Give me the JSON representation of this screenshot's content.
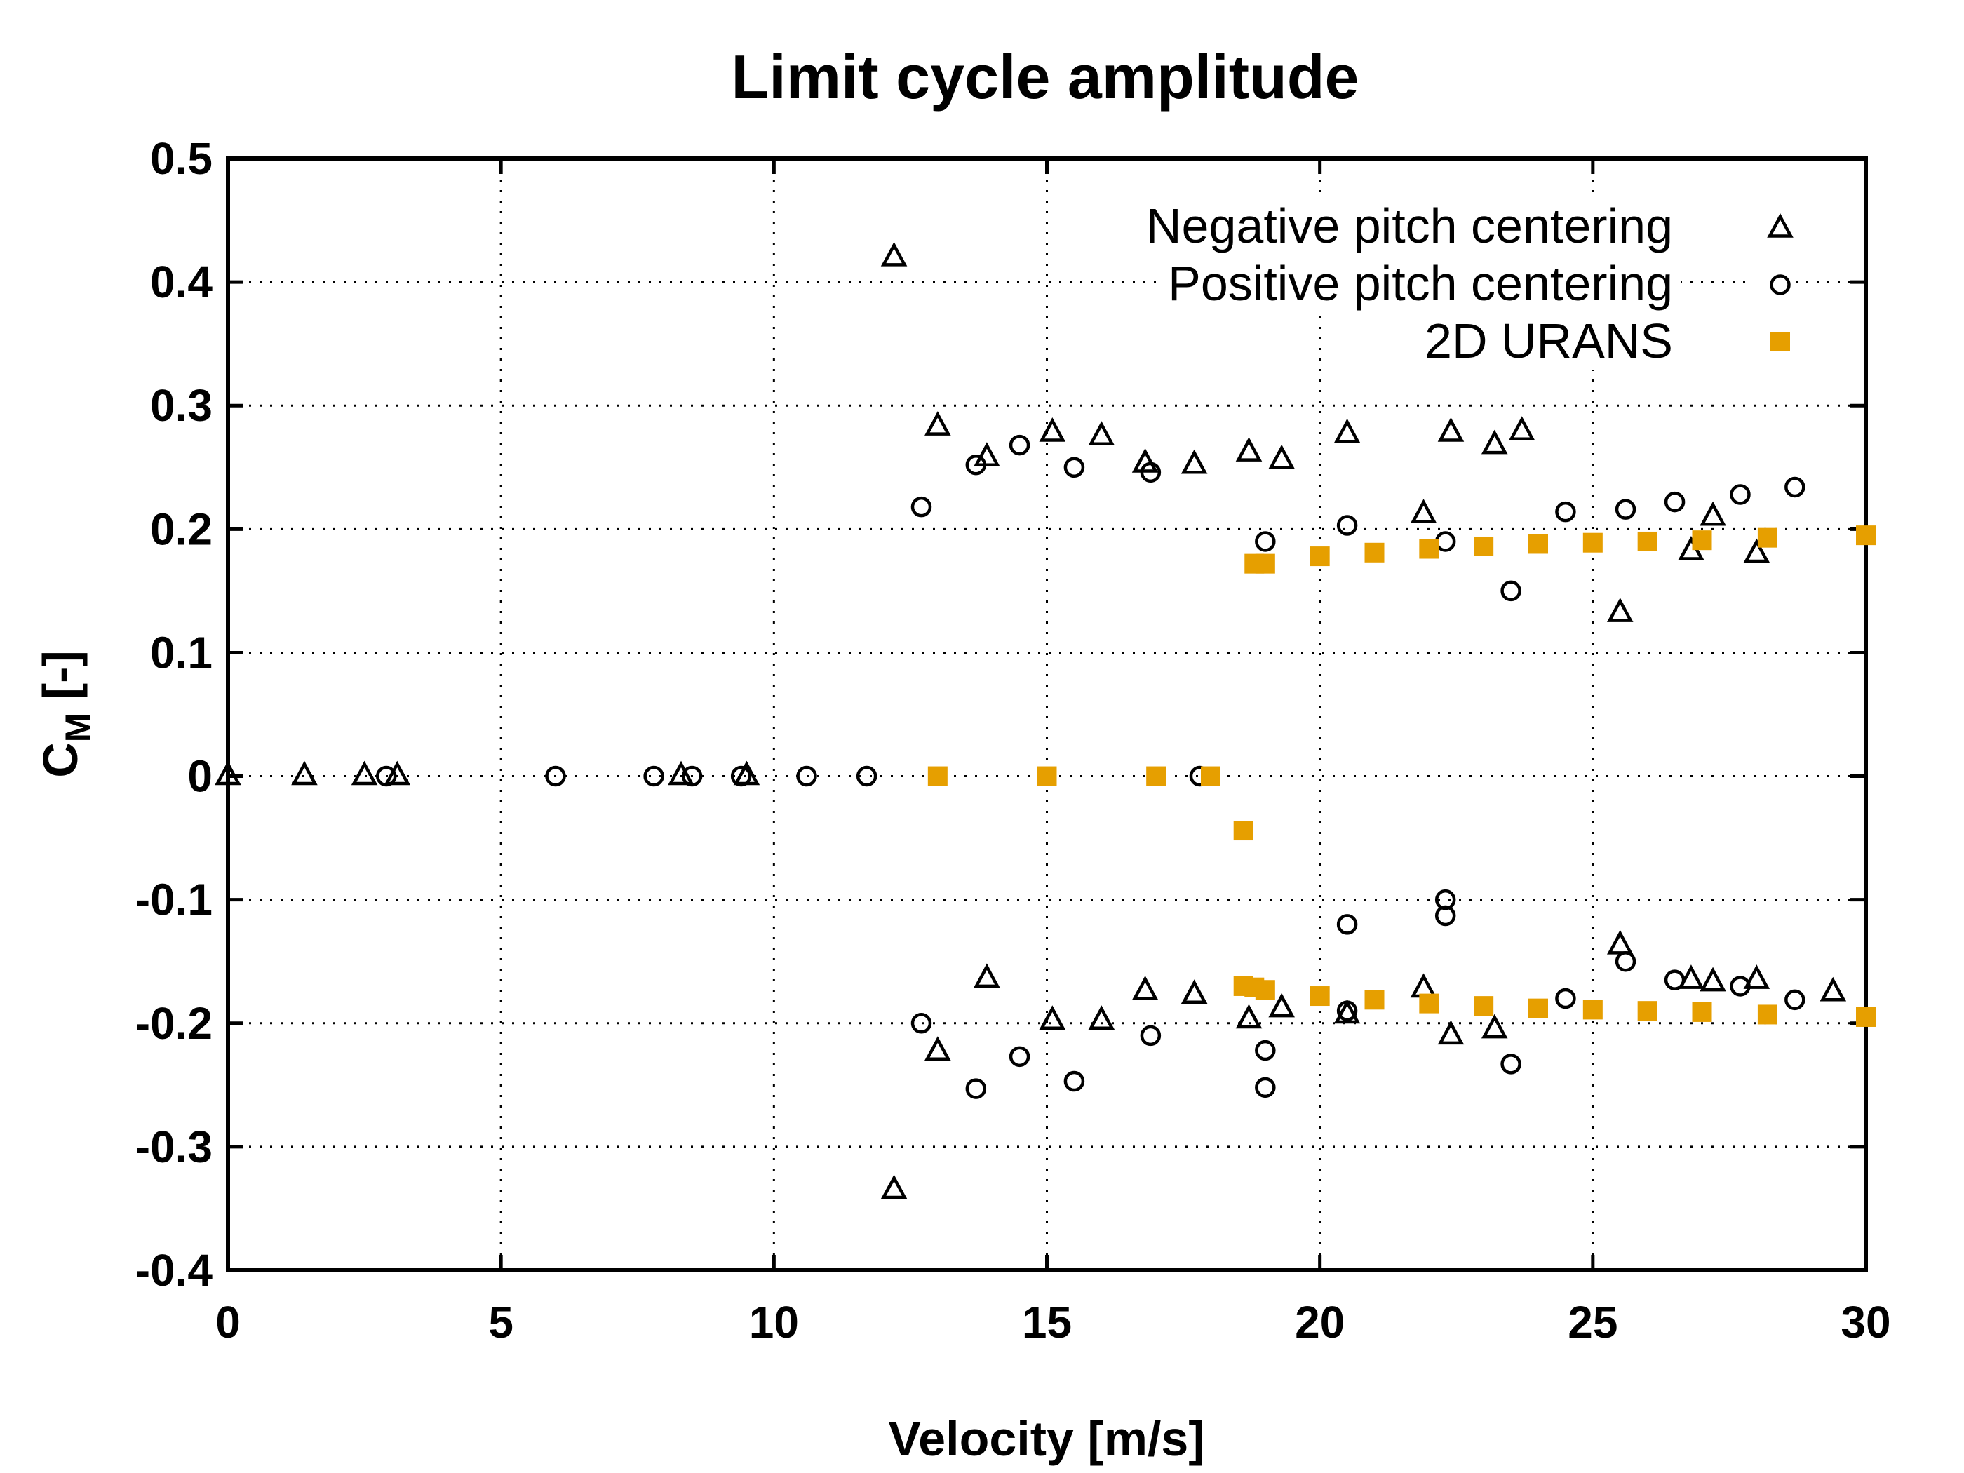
{
  "chart_data": {
    "type": "scatter",
    "title": "Limit cycle amplitude",
    "xlabel": "Velocity [m/s]",
    "ylabel": "C",
    "ylabel_subscript": "M",
    "ylabel_suffix": " [-]",
    "xlim": [
      0,
      30
    ],
    "ylim": [
      -0.4,
      0.5
    ],
    "xticks": [
      0,
      5,
      10,
      15,
      20,
      25,
      30
    ],
    "yticks": [
      -0.4,
      -0.3,
      -0.2,
      -0.1,
      0,
      0.1,
      0.2,
      0.3,
      0.4,
      0.5
    ],
    "xtick_labels": [
      "0",
      "5",
      "10",
      "15",
      "20",
      "25",
      "30"
    ],
    "ytick_labels": [
      "-0.4",
      "-0.3",
      "-0.2",
      "-0.1",
      "0",
      "0.1",
      "0.2",
      "0.3",
      "0.4",
      "0.5"
    ],
    "grid": true,
    "legend_position": "top-right",
    "series": [
      {
        "name": "Negative pitch centering",
        "marker": "triangle",
        "color": "#000000",
        "points": [
          [
            0.0,
            0.0
          ],
          [
            1.4,
            0.0
          ],
          [
            2.5,
            0.0
          ],
          [
            3.1,
            0.0
          ],
          [
            8.3,
            0.0
          ],
          [
            9.5,
            0.0
          ],
          [
            12.2,
            0.42
          ],
          [
            12.2,
            -0.335
          ],
          [
            13.0,
            0.283
          ],
          [
            13.0,
            -0.223
          ],
          [
            13.9,
            0.258
          ],
          [
            13.9,
            -0.164
          ],
          [
            15.1,
            0.278
          ],
          [
            15.1,
            -0.198
          ],
          [
            16.0,
            0.275
          ],
          [
            16.0,
            -0.198
          ],
          [
            16.8,
            0.253
          ],
          [
            16.8,
            -0.174
          ],
          [
            17.7,
            0.252
          ],
          [
            17.7,
            -0.177
          ],
          [
            18.7,
            0.262
          ],
          [
            18.7,
            -0.197
          ],
          [
            19.3,
            0.256
          ],
          [
            19.3,
            -0.188
          ],
          [
            20.5,
            0.277
          ],
          [
            20.5,
            -0.193
          ],
          [
            21.9,
            0.212
          ],
          [
            21.9,
            -0.172
          ],
          [
            22.4,
            0.278
          ],
          [
            22.4,
            -0.21
          ],
          [
            23.2,
            0.268
          ],
          [
            23.2,
            -0.205
          ],
          [
            23.7,
            0.279
          ],
          [
            25.5,
            0.132
          ],
          [
            25.5,
            -0.137
          ],
          [
            26.8,
            0.182
          ],
          [
            26.8,
            -0.165
          ],
          [
            27.2,
            0.21
          ],
          [
            27.2,
            -0.167
          ],
          [
            28.0,
            0.18
          ],
          [
            28.0,
            -0.165
          ],
          [
            29.4,
            -0.175
          ]
        ]
      },
      {
        "name": "Positive pitch centering",
        "marker": "circle",
        "color": "#000000",
        "points": [
          [
            2.9,
            0.0
          ],
          [
            6.0,
            0.0
          ],
          [
            7.8,
            0.0
          ],
          [
            8.5,
            0.0
          ],
          [
            9.4,
            0.0
          ],
          [
            10.6,
            0.0
          ],
          [
            11.7,
            0.0
          ],
          [
            17.8,
            0.0
          ],
          [
            12.7,
            0.218
          ],
          [
            12.7,
            -0.2
          ],
          [
            13.7,
            0.252
          ],
          [
            13.7,
            -0.253
          ],
          [
            14.5,
            0.268
          ],
          [
            14.5,
            -0.227
          ],
          [
            15.5,
            0.25
          ],
          [
            15.5,
            -0.247
          ],
          [
            16.9,
            0.246
          ],
          [
            16.9,
            -0.21
          ],
          [
            19.0,
            0.19
          ],
          [
            19.0,
            -0.222
          ],
          [
            19.0,
            -0.252
          ],
          [
            20.5,
            0.203
          ],
          [
            20.5,
            -0.12
          ],
          [
            20.5,
            -0.19
          ],
          [
            22.3,
            0.19
          ],
          [
            22.3,
            -0.1
          ],
          [
            22.3,
            -0.113
          ],
          [
            23.5,
            0.15
          ],
          [
            23.5,
            -0.233
          ],
          [
            24.5,
            0.214
          ],
          [
            24.5,
            -0.18
          ],
          [
            25.6,
            0.216
          ],
          [
            25.6,
            -0.15
          ],
          [
            26.5,
            0.222
          ],
          [
            26.5,
            -0.165
          ],
          [
            27.7,
            0.228
          ],
          [
            27.7,
            -0.17
          ],
          [
            28.7,
            0.234
          ],
          [
            28.7,
            -0.181
          ]
        ]
      },
      {
        "name": "2D URANS",
        "marker": "square",
        "color": "#E69F00",
        "points": [
          [
            13.0,
            0.0
          ],
          [
            15.0,
            0.0
          ],
          [
            17.0,
            0.0
          ],
          [
            18.0,
            0.0
          ],
          [
            18.6,
            -0.044
          ],
          [
            18.8,
            0.172
          ],
          [
            19.0,
            0.172
          ],
          [
            20.0,
            0.178
          ],
          [
            21.0,
            0.181
          ],
          [
            22.0,
            0.184
          ],
          [
            23.0,
            0.186
          ],
          [
            24.0,
            0.188
          ],
          [
            25.0,
            0.189
          ],
          [
            26.0,
            0.19
          ],
          [
            27.0,
            0.191
          ],
          [
            28.2,
            0.193
          ],
          [
            30.0,
            0.195
          ],
          [
            18.6,
            -0.17
          ],
          [
            18.8,
            -0.171
          ],
          [
            19.0,
            -0.173
          ],
          [
            20.0,
            -0.178
          ],
          [
            21.0,
            -0.181
          ],
          [
            22.0,
            -0.184
          ],
          [
            23.0,
            -0.186
          ],
          [
            24.0,
            -0.188
          ],
          [
            25.0,
            -0.189
          ],
          [
            26.0,
            -0.19
          ],
          [
            27.0,
            -0.191
          ],
          [
            28.2,
            -0.193
          ],
          [
            30.0,
            -0.195
          ]
        ]
      }
    ]
  }
}
